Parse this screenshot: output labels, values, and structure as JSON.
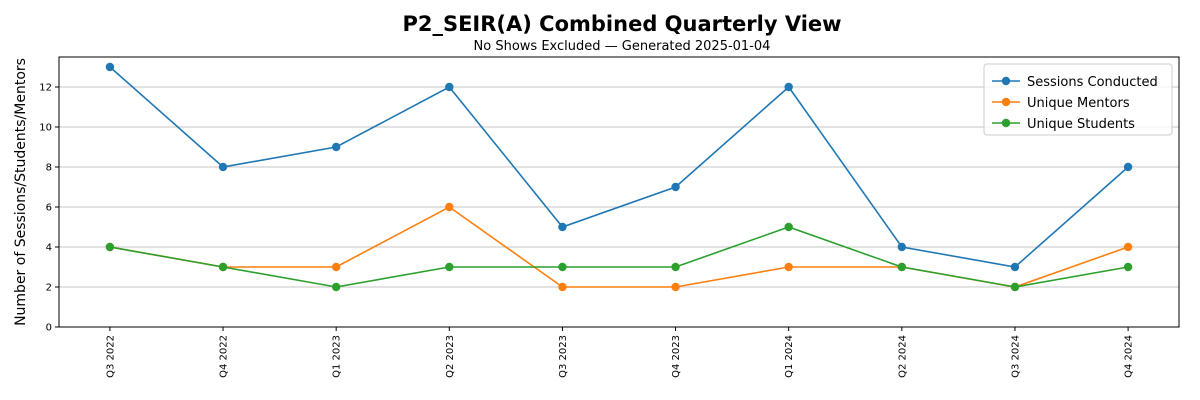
{
  "chart_data": {
    "type": "line",
    "title": "P2_SEIR(A) Combined Quarterly View",
    "subtitle": "No Shows Excluded — Generated 2025-01-04",
    "y_label": "Number of Sessions/Students/Mentors",
    "categories": [
      "Q3 2022",
      "Q4 2022",
      "Q1 2023",
      "Q2 2023",
      "Q3 2023",
      "Q4 2023",
      "Q1 2024",
      "Q2 2024",
      "Q3 2024",
      "Q4 2024"
    ],
    "series": [
      {
        "name": "Sessions Conducted",
        "color": "#1f77b4",
        "values": [
          13,
          8,
          9,
          12,
          5,
          7,
          12,
          4,
          3,
          8
        ]
      },
      {
        "name": "Unique Mentors",
        "color": "#ff7f0e",
        "values": [
          4,
          3,
          3,
          6,
          2,
          2,
          3,
          3,
          2,
          4
        ]
      },
      {
        "name": "Unique Students",
        "color": "#2ca02c",
        "values": [
          4,
          3,
          2,
          3,
          3,
          3,
          5,
          3,
          2,
          3
        ]
      }
    ],
    "ylim": [
      0,
      13.5
    ],
    "yticks": [
      0,
      2,
      4,
      6,
      8,
      10,
      12
    ],
    "grid": true,
    "legend": "upper-right"
  }
}
